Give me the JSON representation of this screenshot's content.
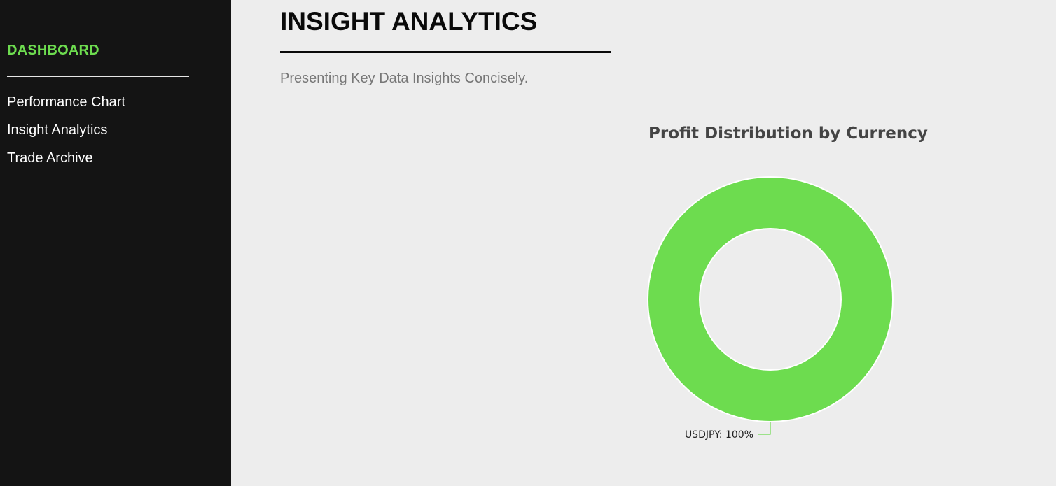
{
  "sidebar": {
    "brand": "DASHBOARD",
    "brand_color": "#6ddc4f",
    "items": [
      {
        "label": "Performance Chart"
      },
      {
        "label": "Insight Analytics"
      },
      {
        "label": "Trade Archive"
      }
    ]
  },
  "main": {
    "title": "INSIGHT ANALYTICS",
    "subtitle": "Presenting Key Data Insights Concisely."
  },
  "chart_data": {
    "type": "pie",
    "title": "Profit Distribution by Currency",
    "categories": [
      "USDJPY"
    ],
    "values": [
      100
    ],
    "labels": [
      "USDJPY: 100%"
    ],
    "colors": [
      "#6ddc4f"
    ],
    "donut": true
  }
}
